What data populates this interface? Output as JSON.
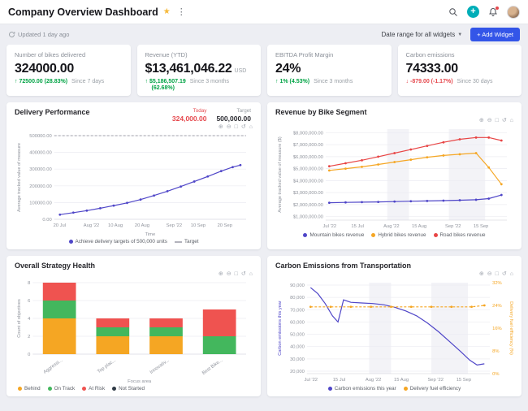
{
  "header": {
    "title": "Company Overview Dashboard",
    "updated": "Updated 1 day ago",
    "date_range_label": "Date range for all widgets",
    "add_widget_label": "+ Add Widget"
  },
  "colors": {
    "accent_teal": "#00aeb8",
    "accent_blue": "#3355e8",
    "positive_green": "#00a344",
    "negative_red": "#e5484d",
    "series_purple": "#4f46c8",
    "series_orange": "#f5a623",
    "series_red": "#e84545"
  },
  "modebar": {
    "icons": [
      {
        "name": "zoom-in-icon",
        "glyph": "⊕"
      },
      {
        "name": "zoom-out-icon",
        "glyph": "⊖"
      },
      {
        "name": "box-select-icon",
        "glyph": "□"
      },
      {
        "name": "reset-axes-icon",
        "glyph": "↺"
      },
      {
        "name": "home-icon",
        "glyph": "⌂"
      }
    ]
  },
  "kpis": [
    {
      "title": "Number of bikes delivered",
      "value": "324000.00",
      "unit": "",
      "arrow": "↑",
      "delta": "72500.00 (28.83%)",
      "delta2": "",
      "since": "Since 7 days",
      "trend": "up"
    },
    {
      "title": "Revenue (YTD)",
      "value": "$13,461,046.22",
      "unit": "USD",
      "arrow": "↑",
      "delta": "$5,186,507.19",
      "delta2": "(62.68%)",
      "since": "Since 3 months",
      "trend": "up"
    },
    {
      "title": "EBITDA Profit Margin",
      "value": "24%",
      "unit": "",
      "arrow": "↑",
      "delta": "1% (4.53%)",
      "delta2": "",
      "since": "Since 3 months",
      "trend": "up"
    },
    {
      "title": "Carbon emissions",
      "value": "74333.00",
      "unit": "",
      "arrow": "↓",
      "delta": "-879.00 (-1.17%)",
      "delta2": "",
      "since": "Since 30 days",
      "trend": "down"
    }
  ],
  "cards": {
    "delivery": {
      "title": "Delivery Performance",
      "today_label": "Today",
      "today_value": "324,000.00",
      "target_label": "Target",
      "target_value": "500,000.00"
    },
    "revenue": {
      "title": "Revenue by Bike Segment"
    },
    "strategy": {
      "title": "Overall Strategy Health"
    },
    "carbon": {
      "title": "Carbon Emissions from Transportation"
    }
  },
  "chart_data": [
    {
      "id": "delivery",
      "type": "line",
      "title": "Delivery Performance",
      "xlabel": "Time",
      "ylabel": "Average tracked value of measure",
      "ylim": [
        0,
        500000
      ],
      "yticks": [
        {
          "v": 0,
          "label": "0.00"
        },
        {
          "v": 100000,
          "label": "100000.00"
        },
        {
          "v": 200000,
          "label": "200000.00"
        },
        {
          "v": 300000,
          "label": "300000.00"
        },
        {
          "v": 400000,
          "label": "400000.00"
        },
        {
          "v": 500000,
          "label": "500000.00"
        }
      ],
      "xticks": [
        {
          "p": 0.028,
          "label": "20 Jul"
        },
        {
          "p": 0.194,
          "label": "Aug '22"
        },
        {
          "p": 0.319,
          "label": "10 Aug"
        },
        {
          "p": 0.458,
          "label": "20 Aug"
        },
        {
          "p": 0.625,
          "label": "Sep '22"
        },
        {
          "p": 0.75,
          "label": "10 Sep"
        },
        {
          "p": 0.889,
          "label": "20 Sep"
        }
      ],
      "bands": [],
      "series": [
        {
          "name": "Achieve delivery targets of 500,000 units",
          "color": "#4f46c8",
          "dash": false,
          "markers": true,
          "x": [
            0.03,
            0.1,
            0.17,
            0.24,
            0.31,
            0.38,
            0.45,
            0.52,
            0.59,
            0.66,
            0.73,
            0.8,
            0.87,
            0.93,
            0.97
          ],
          "y": [
            28000,
            40000,
            52000,
            66000,
            82000,
            98000,
            118000,
            142000,
            168000,
            196000,
            226000,
            256000,
            288000,
            312000,
            324000
          ]
        },
        {
          "name": "Target",
          "color": "#b3b3bc",
          "dash": true,
          "markers": false,
          "x": [
            0,
            1
          ],
          "y": [
            500000,
            500000
          ]
        }
      ],
      "legend": [
        {
          "label": "Achieve delivery targets of 500,000 units",
          "color": "#4f46c8",
          "shape": "dot"
        },
        {
          "label": "Target",
          "color": "#b3b3bc",
          "shape": "dash"
        }
      ]
    },
    {
      "id": "revenue",
      "type": "line",
      "title": "Revenue by Bike Segment",
      "xlabel": "",
      "ylabel": "Average tracked value of measure ($)",
      "ylim": [
        700000,
        8300000
      ],
      "yticks": [
        {
          "v": 1000000,
          "label": "$1,000,000.00"
        },
        {
          "v": 2000000,
          "label": "$2,000,000.00"
        },
        {
          "v": 3000000,
          "label": "$3,000,000.00"
        },
        {
          "v": 4000000,
          "label": "$4,000,000.00"
        },
        {
          "v": 5000000,
          "label": "$5,000,000.00"
        },
        {
          "v": 6000000,
          "label": "$6,000,000.00"
        },
        {
          "v": 7000000,
          "label": "$7,000,000.00"
        },
        {
          "v": 8000000,
          "label": "$8,000,000.00"
        }
      ],
      "xticks": [
        {
          "p": 0.022,
          "label": "Jul '22"
        },
        {
          "p": 0.176,
          "label": "15 Jul"
        },
        {
          "p": 0.363,
          "label": "Aug '22"
        },
        {
          "p": 0.516,
          "label": "15 Aug"
        },
        {
          "p": 0.703,
          "label": "Sep '22"
        },
        {
          "p": 0.857,
          "label": "15 Sep"
        }
      ],
      "bands": [
        [
          0.34,
          0.46
        ],
        [
          0.68,
          0.88
        ]
      ],
      "series": [
        {
          "name": "Mountain bikes revenue",
          "color": "#4f46c8",
          "dash": false,
          "markers": true,
          "x": [
            0.02,
            0.11,
            0.2,
            0.29,
            0.38,
            0.47,
            0.56,
            0.65,
            0.74,
            0.83,
            0.9,
            0.97
          ],
          "y": [
            2150000,
            2180000,
            2200000,
            2220000,
            2250000,
            2280000,
            2300000,
            2330000,
            2360000,
            2400000,
            2500000,
            2800000
          ]
        },
        {
          "name": "Hybrid bikes revenue",
          "color": "#f5a623",
          "dash": false,
          "markers": true,
          "x": [
            0.02,
            0.11,
            0.2,
            0.29,
            0.38,
            0.47,
            0.56,
            0.65,
            0.74,
            0.83,
            0.9,
            0.97
          ],
          "y": [
            4850000,
            5000000,
            5150000,
            5350000,
            5550000,
            5750000,
            5950000,
            6100000,
            6200000,
            6300000,
            5100000,
            3700000
          ]
        },
        {
          "name": "Road bikes revenue",
          "color": "#e84545",
          "dash": false,
          "markers": true,
          "x": [
            0.02,
            0.11,
            0.2,
            0.29,
            0.38,
            0.47,
            0.56,
            0.65,
            0.74,
            0.83,
            0.9,
            0.97
          ],
          "y": [
            5200000,
            5450000,
            5700000,
            6000000,
            6300000,
            6600000,
            6900000,
            7200000,
            7450000,
            7600000,
            7600000,
            7350000
          ]
        }
      ],
      "legend": [
        {
          "label": "Mountain bikes revenue",
          "color": "#4f46c8",
          "shape": "dot"
        },
        {
          "label": "Hybrid bikes revenue",
          "color": "#f5a623",
          "shape": "dot"
        },
        {
          "label": "Road bikes revenue",
          "color": "#e84545",
          "shape": "dot"
        }
      ]
    },
    {
      "id": "strategy",
      "type": "stacked_bar",
      "title": "Overall Strategy Health",
      "xlabel": "Focus area",
      "ylabel": "Count of objectives",
      "ylim": [
        0,
        8
      ],
      "yticks": [
        {
          "v": 0,
          "label": "0"
        },
        {
          "v": 2,
          "label": "2"
        },
        {
          "v": 4,
          "label": "4"
        },
        {
          "v": 6,
          "label": "6"
        },
        {
          "v": 8,
          "label": "8"
        }
      ],
      "categories": [
        "Aggressi...",
        "Top plac...",
        "Innovativ...",
        "Best Bike..."
      ],
      "series": [
        {
          "name": "Behind",
          "color": "#f5a623",
          "values": [
            4,
            2,
            2,
            0
          ]
        },
        {
          "name": "On Track",
          "color": "#43b75d",
          "values": [
            2,
            1,
            1,
            2
          ]
        },
        {
          "name": "At Risk",
          "color": "#ef5350",
          "values": [
            2,
            1,
            1,
            3
          ]
        },
        {
          "name": "Not Started",
          "color": "#2f3a45",
          "values": [
            0,
            0,
            0,
            0
          ]
        }
      ],
      "legend": [
        {
          "label": "Behind",
          "color": "#f5a623",
          "shape": "dot"
        },
        {
          "label": "On Track",
          "color": "#43b75d",
          "shape": "dot"
        },
        {
          "label": "At Risk",
          "color": "#ef5350",
          "shape": "dot"
        },
        {
          "label": "Not Started",
          "color": "#2f3a45",
          "shape": "dot"
        }
      ]
    },
    {
      "id": "carbon",
      "type": "line",
      "title": "Carbon Emissions from Transportation",
      "xlabel": "",
      "ylabel": "Carbon emissions this year",
      "ylabel_color": "#4f46c8",
      "y2label": "Delivery fuel efficiency (%)",
      "y2color": "#f5a623",
      "ylim": [
        18000,
        92000
      ],
      "yticks": [
        {
          "v": 20000,
          "label": "20,000"
        },
        {
          "v": 30000,
          "label": "30,000"
        },
        {
          "v": 40000,
          "label": "40,000"
        },
        {
          "v": 50000,
          "label": "50,000"
        },
        {
          "v": 60000,
          "label": "60,000"
        },
        {
          "v": 70000,
          "label": "70,000"
        },
        {
          "v": 80000,
          "label": "80,000"
        },
        {
          "v": 90000,
          "label": "90,000"
        }
      ],
      "y2lim": [
        0,
        32
      ],
      "y2ticks": [
        {
          "v": 0,
          "label": "0%"
        },
        {
          "v": 8,
          "label": "8%"
        },
        {
          "v": 16,
          "label": "16%"
        },
        {
          "v": 24,
          "label": "24%"
        },
        {
          "v": 32,
          "label": "32%"
        }
      ],
      "xticks": [
        {
          "p": 0.022,
          "label": "Jul '22"
        },
        {
          "p": 0.176,
          "label": "15 Jul"
        },
        {
          "p": 0.363,
          "label": "Aug '22"
        },
        {
          "p": 0.516,
          "label": "15 Aug"
        },
        {
          "p": 0.703,
          "label": "Sep '22"
        },
        {
          "p": 0.857,
          "label": "15 Sep"
        }
      ],
      "bands": [
        [
          0.34,
          0.46
        ],
        [
          0.68,
          0.88
        ]
      ],
      "series": [
        {
          "name": "Carbon emissions this year",
          "color": "#4f46c8",
          "dash": false,
          "markers": false,
          "x": [
            0.02,
            0.06,
            0.1,
            0.14,
            0.17,
            0.2,
            0.24,
            0.3,
            0.36,
            0.42,
            0.48,
            0.54,
            0.6,
            0.66,
            0.72,
            0.78,
            0.84,
            0.89,
            0.93,
            0.97
          ],
          "y": [
            88000,
            83000,
            75000,
            65000,
            60000,
            78000,
            76000,
            75500,
            75000,
            74000,
            72000,
            69000,
            65000,
            59000,
            52000,
            44000,
            36000,
            29000,
            25000,
            26000
          ]
        },
        {
          "name": "Delivery fuel efficiency",
          "color": "#f5a623",
          "dash": true,
          "markers": true,
          "axis": "y2",
          "x": [
            0.02,
            0.13,
            0.24,
            0.35,
            0.46,
            0.57,
            0.68,
            0.79,
            0.9,
            0.97
          ],
          "y": [
            23.5,
            23.5,
            23.5,
            23.5,
            23.5,
            23.5,
            23.5,
            23.5,
            23.5,
            24
          ]
        }
      ],
      "legend": [
        {
          "label": "Carbon emissions this year",
          "color": "#4f46c8",
          "shape": "dot"
        },
        {
          "label": "Delivery fuel efficiency",
          "color": "#f5a623",
          "shape": "dot"
        }
      ]
    }
  ]
}
